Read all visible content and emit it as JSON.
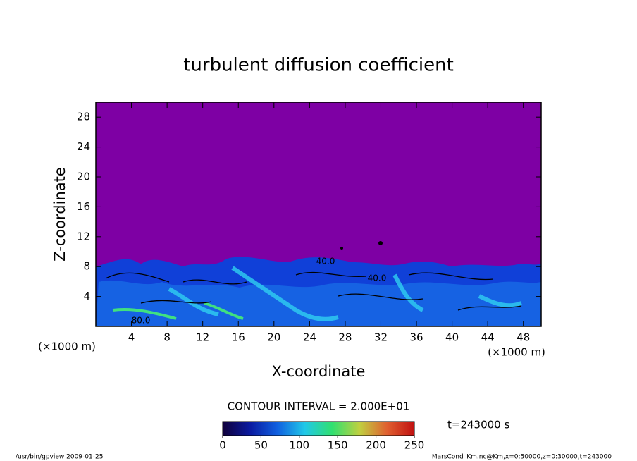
{
  "chart_data": {
    "type": "contour",
    "title": "turbulent diffusion coefficient",
    "xlabel": "X-coordinate",
    "ylabel": "Z-coordinate",
    "x_unit": "(×1000 m)",
    "y_unit": "(×1000 m)",
    "xlim": [
      0,
      50
    ],
    "ylim": [
      0,
      30
    ],
    "xticks": [
      4,
      8,
      12,
      16,
      20,
      24,
      28,
      32,
      36,
      40,
      44,
      48
    ],
    "yticks": [
      4,
      8,
      12,
      16,
      20,
      24,
      28
    ],
    "contour_interval": "CONTOUR INTERVAL = 2.000E+01",
    "contour_labels": [
      "40.0",
      "40.0",
      "80.0"
    ],
    "time_label": "t=243000 s",
    "colorbar": {
      "lim": [
        0,
        250
      ],
      "ticks": [
        0,
        50,
        100,
        150,
        200,
        250
      ],
      "colors": [
        "#10003a",
        "#0a1aa0",
        "#1060e0",
        "#20c8e8",
        "#30e070",
        "#c0d040",
        "#e06030",
        "#c01010"
      ]
    },
    "background_color": "#7e00a4",
    "footer_left": "/usr/bin/gpview   2009-01-25",
    "footer_right": "MarsCond_Km.nc@Km,x=0:50000,z=0:30000,t=243000"
  }
}
